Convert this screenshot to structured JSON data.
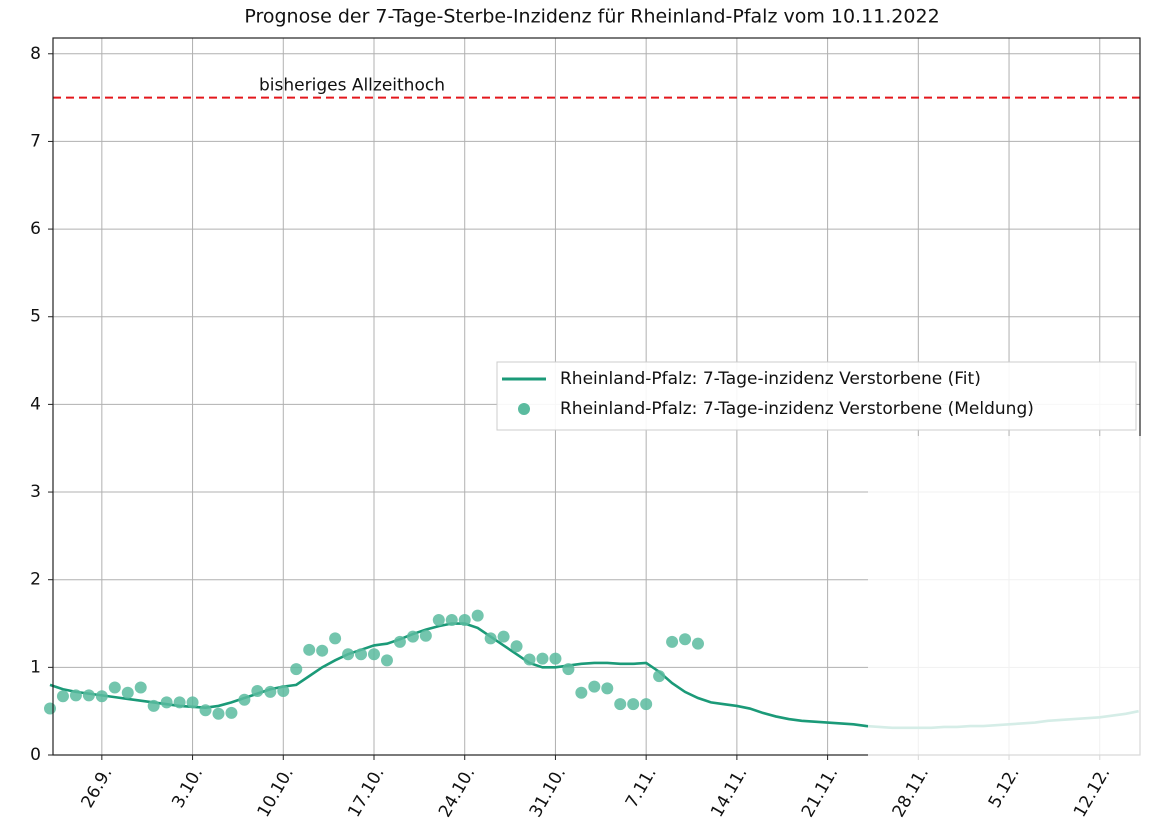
{
  "chart_data": {
    "type": "line",
    "title": "Prognose der 7-Tage-Sterbe-Inzidenz für Rheinland-Pfalz vom 10.11.2022",
    "x": [
      "22.9.",
      "23.9.",
      "24.9.",
      "25.9.",
      "26.9.",
      "27.9.",
      "28.9.",
      "29.9.",
      "30.9.",
      "1.10.",
      "2.10.",
      "3.10.",
      "4.10.",
      "5.10.",
      "6.10.",
      "7.10.",
      "8.10.",
      "9.10.",
      "10.10.",
      "11.10.",
      "12.10.",
      "13.10.",
      "14.10.",
      "15.10.",
      "16.10.",
      "17.10.",
      "18.10.",
      "19.10.",
      "20.10.",
      "21.10.",
      "22.10.",
      "23.10.",
      "24.10.",
      "25.10.",
      "26.10.",
      "27.10.",
      "28.10.",
      "29.10.",
      "30.10.",
      "31.10.",
      "1.11.",
      "2.11.",
      "3.11.",
      "4.11.",
      "5.11.",
      "6.11.",
      "7.11.",
      "8.11.",
      "9.11.",
      "10.11.",
      "11.11.",
      "12.11.",
      "13.11.",
      "14.11.",
      "15.11.",
      "16.11.",
      "17.11.",
      "18.11.",
      "19.11.",
      "20.11.",
      "21.11.",
      "22.11.",
      "23.11.",
      "24.11.",
      "25.11.",
      "26.11.",
      "27.11.",
      "28.11.",
      "29.11.",
      "30.11.",
      "1.12.",
      "2.12.",
      "3.12.",
      "4.12.",
      "5.12.",
      "6.12.",
      "7.12.",
      "8.12.",
      "9.12.",
      "10.12.",
      "11.12.",
      "12.12.",
      "13.12.",
      "14.12.",
      "15.12."
    ],
    "series": [
      {
        "name": "Rheinland-Pfalz: 7-Tage-inzidenz Verstorbene (Fit)",
        "kind": "line",
        "color": "#1b9a78",
        "values": [
          0.8,
          0.75,
          0.72,
          0.7,
          0.68,
          0.66,
          0.64,
          0.62,
          0.6,
          0.58,
          0.56,
          0.55,
          0.54,
          0.56,
          0.6,
          0.65,
          0.7,
          0.75,
          0.78,
          0.8,
          0.9,
          1.0,
          1.08,
          1.15,
          1.2,
          1.25,
          1.27,
          1.32,
          1.38,
          1.43,
          1.47,
          1.5,
          1.5,
          1.45,
          1.35,
          1.25,
          1.15,
          1.05,
          1.0,
          1.0,
          1.02,
          1.04,
          1.05,
          1.05,
          1.04,
          1.04,
          1.05,
          0.95,
          0.82,
          0.72,
          0.65,
          0.6,
          0.58,
          0.56,
          0.53,
          0.48,
          0.44,
          0.41,
          0.39,
          0.38,
          0.37,
          0.36,
          0.35,
          0.33,
          0.32,
          0.31,
          0.31,
          0.31,
          0.31,
          0.32,
          0.32,
          0.33,
          0.33,
          0.34,
          0.35,
          0.36,
          0.37,
          0.39,
          0.4,
          0.41,
          0.42,
          0.43,
          0.45,
          0.47,
          0.5
        ]
      },
      {
        "name": "Rheinland-Pfalz: 7-Tage-inzidenz Verstorbene (Meldung)",
        "kind": "scatter",
        "color": "#5bbb9f",
        "values": [
          0.53,
          0.67,
          0.68,
          0.68,
          0.67,
          0.77,
          0.71,
          0.77,
          0.56,
          0.6,
          0.6,
          0.6,
          0.51,
          0.47,
          0.48,
          0.63,
          0.73,
          0.72,
          0.73,
          0.98,
          1.2,
          1.19,
          1.33,
          1.15,
          1.15,
          1.15,
          1.08,
          1.29,
          1.35,
          1.36,
          1.54,
          1.54,
          1.54,
          1.59,
          1.33,
          1.35,
          1.24,
          1.09,
          1.1,
          1.1,
          0.98,
          0.71,
          0.78,
          0.76,
          0.58,
          0.58,
          0.58,
          0.9,
          1.29,
          1.32,
          1.27,
          null,
          null,
          null,
          null,
          null,
          null,
          null,
          null,
          null,
          null,
          null,
          null,
          null,
          null,
          null,
          null,
          null,
          null,
          null,
          null,
          null,
          null,
          null,
          null,
          null,
          null,
          null,
          null,
          null,
          null,
          null,
          null,
          null,
          null
        ]
      }
    ],
    "hline": {
      "value": 7.5,
      "color": "#e3171c",
      "label": "bisheriges Allzeithoch"
    },
    "xticks": [
      "26.9.",
      "3.10.",
      "10.10.",
      "17.10.",
      "24.10.",
      "31.10.",
      "7.11.",
      "14.11.",
      "21.11.",
      "28.11.",
      "5.12.",
      "12.12."
    ],
    "ylim": [
      0,
      8.18
    ],
    "yticks": [
      0,
      1,
      2,
      3,
      4,
      5,
      6,
      7,
      8
    ],
    "grid": true
  }
}
